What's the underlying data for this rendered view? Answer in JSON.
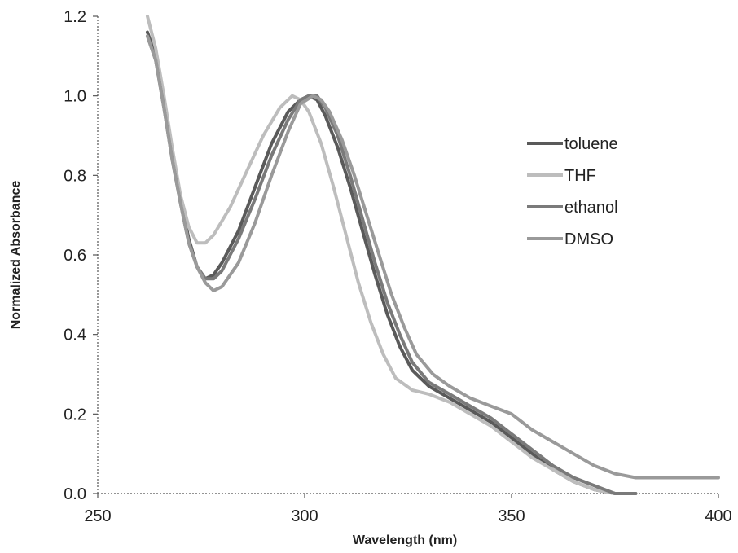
{
  "chart_data": {
    "type": "line",
    "title": "",
    "xlabel": "Wavelength (nm)",
    "ylabel": "Normalized Absorbance",
    "xlim": [
      250,
      400
    ],
    "ylim": [
      0,
      1.2
    ],
    "xticks": [
      250,
      300,
      350,
      400
    ],
    "yticks": [
      0.0,
      0.2,
      0.4,
      0.6,
      0.8,
      1.0,
      1.2
    ],
    "xtick_labels": [
      "250",
      "300",
      "350",
      "400"
    ],
    "ytick_labels": [
      "0.0",
      "0.2",
      "0.4",
      "0.6",
      "0.8",
      "1.0",
      "1.2"
    ],
    "grid": false,
    "legend_position": "right",
    "series": [
      {
        "name": "toluene",
        "color": "#5a5a5a",
        "points": [
          [
            262,
            1.16
          ],
          [
            264,
            1.1
          ],
          [
            266,
            0.98
          ],
          [
            268,
            0.85
          ],
          [
            270,
            0.74
          ],
          [
            272,
            0.64
          ],
          [
            274,
            0.57
          ],
          [
            276,
            0.54
          ],
          [
            278,
            0.55
          ],
          [
            280,
            0.58
          ],
          [
            284,
            0.66
          ],
          [
            288,
            0.77
          ],
          [
            292,
            0.88
          ],
          [
            296,
            0.96
          ],
          [
            299,
            0.99
          ],
          [
            301,
            1.0
          ],
          [
            303,
            0.99
          ],
          [
            305,
            0.95
          ],
          [
            308,
            0.87
          ],
          [
            311,
            0.77
          ],
          [
            314,
            0.66
          ],
          [
            317,
            0.55
          ],
          [
            320,
            0.45
          ],
          [
            323,
            0.37
          ],
          [
            326,
            0.31
          ],
          [
            330,
            0.27
          ],
          [
            335,
            0.24
          ],
          [
            340,
            0.21
          ],
          [
            345,
            0.18
          ],
          [
            350,
            0.14
          ],
          [
            355,
            0.1
          ],
          [
            360,
            0.06
          ],
          [
            365,
            0.03
          ],
          [
            370,
            0.01
          ],
          [
            375,
            0.0
          ],
          [
            380,
            0.0
          ]
        ]
      },
      {
        "name": "THF",
        "color": "#bdbdbd",
        "points": [
          [
            262,
            1.2
          ],
          [
            264,
            1.12
          ],
          [
            266,
            1.0
          ],
          [
            268,
            0.87
          ],
          [
            270,
            0.75
          ],
          [
            272,
            0.67
          ],
          [
            274,
            0.63
          ],
          [
            276,
            0.63
          ],
          [
            278,
            0.65
          ],
          [
            282,
            0.72
          ],
          [
            286,
            0.81
          ],
          [
            290,
            0.9
          ],
          [
            294,
            0.97
          ],
          [
            297,
            1.0
          ],
          [
            299,
            0.99
          ],
          [
            301,
            0.96
          ],
          [
            304,
            0.88
          ],
          [
            307,
            0.77
          ],
          [
            310,
            0.65
          ],
          [
            313,
            0.53
          ],
          [
            316,
            0.43
          ],
          [
            319,
            0.35
          ],
          [
            322,
            0.29
          ],
          [
            326,
            0.26
          ],
          [
            330,
            0.25
          ],
          [
            335,
            0.23
          ],
          [
            340,
            0.2
          ],
          [
            345,
            0.17
          ],
          [
            350,
            0.13
          ],
          [
            355,
            0.09
          ],
          [
            360,
            0.06
          ],
          [
            365,
            0.03
          ],
          [
            370,
            0.01
          ],
          [
            375,
            0.0
          ]
        ]
      },
      {
        "name": "ethanol",
        "color": "#7a7a7a",
        "points": [
          [
            262,
            1.15
          ],
          [
            264,
            1.09
          ],
          [
            266,
            0.97
          ],
          [
            268,
            0.84
          ],
          [
            270,
            0.73
          ],
          [
            272,
            0.63
          ],
          [
            274,
            0.57
          ],
          [
            276,
            0.54
          ],
          [
            278,
            0.54
          ],
          [
            280,
            0.56
          ],
          [
            284,
            0.64
          ],
          [
            288,
            0.74
          ],
          [
            292,
            0.85
          ],
          [
            296,
            0.94
          ],
          [
            299,
            0.99
          ],
          [
            301,
            1.0
          ],
          [
            303,
            1.0
          ],
          [
            305,
            0.97
          ],
          [
            308,
            0.9
          ],
          [
            311,
            0.8
          ],
          [
            314,
            0.69
          ],
          [
            317,
            0.58
          ],
          [
            320,
            0.48
          ],
          [
            323,
            0.4
          ],
          [
            326,
            0.33
          ],
          [
            330,
            0.28
          ],
          [
            335,
            0.25
          ],
          [
            340,
            0.22
          ],
          [
            345,
            0.19
          ],
          [
            350,
            0.15
          ],
          [
            355,
            0.11
          ],
          [
            360,
            0.07
          ],
          [
            365,
            0.04
          ],
          [
            370,
            0.02
          ],
          [
            375,
            0.0
          ],
          [
            380,
            0.0
          ]
        ]
      },
      {
        "name": "DMSO",
        "color": "#9a9a9a",
        "points": [
          [
            262,
            1.15
          ],
          [
            264,
            1.09
          ],
          [
            266,
            0.97
          ],
          [
            268,
            0.84
          ],
          [
            270,
            0.73
          ],
          [
            272,
            0.63
          ],
          [
            274,
            0.57
          ],
          [
            276,
            0.53
          ],
          [
            278,
            0.51
          ],
          [
            280,
            0.52
          ],
          [
            284,
            0.58
          ],
          [
            288,
            0.68
          ],
          [
            292,
            0.8
          ],
          [
            296,
            0.91
          ],
          [
            299,
            0.98
          ],
          [
            302,
            1.0
          ],
          [
            304,
            0.99
          ],
          [
            306,
            0.96
          ],
          [
            309,
            0.89
          ],
          [
            312,
            0.8
          ],
          [
            315,
            0.7
          ],
          [
            318,
            0.6
          ],
          [
            321,
            0.5
          ],
          [
            324,
            0.42
          ],
          [
            327,
            0.35
          ],
          [
            331,
            0.3
          ],
          [
            335,
            0.27
          ],
          [
            340,
            0.24
          ],
          [
            345,
            0.22
          ],
          [
            350,
            0.2
          ],
          [
            355,
            0.16
          ],
          [
            360,
            0.13
          ],
          [
            365,
            0.1
          ],
          [
            370,
            0.07
          ],
          [
            375,
            0.05
          ],
          [
            380,
            0.04
          ],
          [
            390,
            0.04
          ],
          [
            400,
            0.04
          ]
        ]
      }
    ]
  }
}
